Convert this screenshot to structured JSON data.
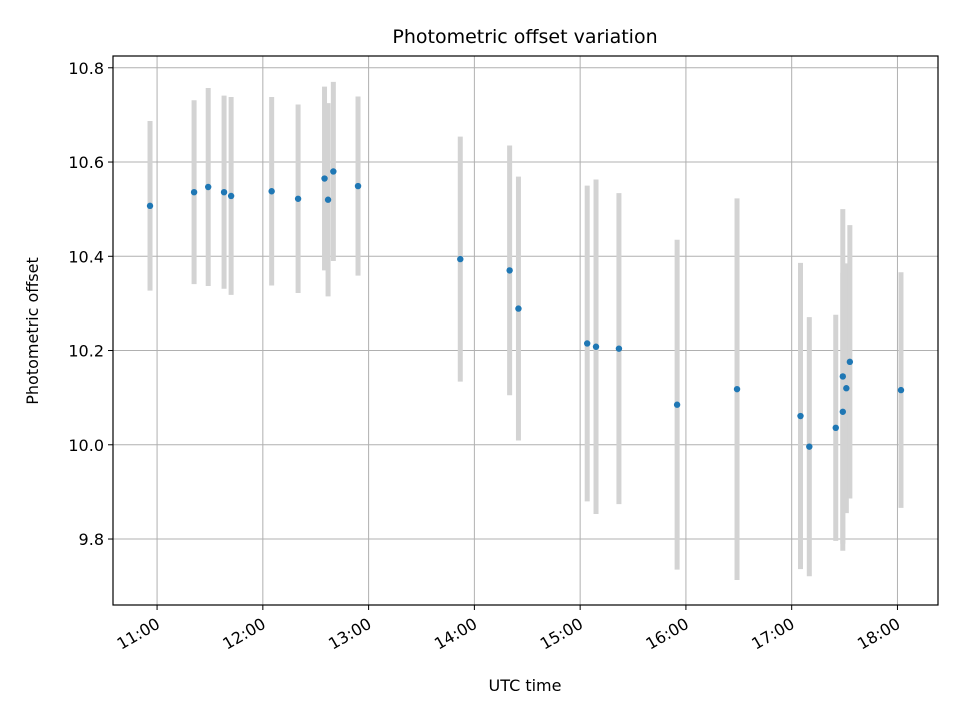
{
  "chart_data": {
    "type": "scatter",
    "title": "Photometric offset variation",
    "xlabel": "UTC time",
    "ylabel": "Photometric offset",
    "x_ticks": [
      "11:00",
      "12:00",
      "13:00",
      "14:00",
      "15:00",
      "16:00",
      "17:00",
      "18:00"
    ],
    "y_ticks": [
      "9.8",
      "10.0",
      "10.2",
      "10.4",
      "10.6",
      "10.8"
    ],
    "xlim": [
      "10:35",
      "18:23"
    ],
    "ylim": [
      9.66,
      10.825
    ],
    "grid": true,
    "colors": {
      "points": "#1f77b4",
      "errorbars": "#d3d3d3",
      "grid": "#b0b0b0"
    },
    "series": [
      {
        "points": [
          {
            "x": "10:56",
            "y": 10.507,
            "err": 0.18
          },
          {
            "x": "11:21",
            "y": 10.536,
            "err": 0.195
          },
          {
            "x": "11:29",
            "y": 10.547,
            "err": 0.21
          },
          {
            "x": "11:38",
            "y": 10.536,
            "err": 0.205
          },
          {
            "x": "11:42",
            "y": 10.528,
            "err": 0.21
          },
          {
            "x": "12:05",
            "y": 10.538,
            "err": 0.2
          },
          {
            "x": "12:20",
            "y": 10.522,
            "err": 0.2
          },
          {
            "x": "12:35",
            "y": 10.565,
            "err": 0.195
          },
          {
            "x": "12:37",
            "y": 10.52,
            "err": 0.205
          },
          {
            "x": "12:40",
            "y": 10.58,
            "err": 0.19
          },
          {
            "x": "12:54",
            "y": 10.549,
            "err": 0.19
          },
          {
            "x": "13:52",
            "y": 10.394,
            "err": 0.26
          },
          {
            "x": "14:20",
            "y": 10.37,
            "err": 0.265
          },
          {
            "x": "14:25",
            "y": 10.289,
            "err": 0.28
          },
          {
            "x": "15:04",
            "y": 10.215,
            "err": 0.335
          },
          {
            "x": "15:09",
            "y": 10.208,
            "err": 0.355
          },
          {
            "x": "15:22",
            "y": 10.204,
            "err": 0.33
          },
          {
            "x": "15:55",
            "y": 10.085,
            "err": 0.35
          },
          {
            "x": "16:29",
            "y": 10.118,
            "err": 0.405
          },
          {
            "x": "17:05",
            "y": 10.061,
            "err": 0.325
          },
          {
            "x": "17:10",
            "y": 9.996,
            "err": 0.275
          },
          {
            "x": "17:25",
            "y": 10.036,
            "err": 0.24
          },
          {
            "x": "17:29",
            "y": 10.145,
            "err": 0.355
          },
          {
            "x": "17:29",
            "y": 10.07,
            "err": 0.295
          },
          {
            "x": "17:31",
            "y": 10.12,
            "err": 0.265
          },
          {
            "x": "17:33",
            "y": 10.176,
            "err": 0.29
          },
          {
            "x": "18:02",
            "y": 10.116,
            "err": 0.25
          }
        ]
      }
    ]
  }
}
